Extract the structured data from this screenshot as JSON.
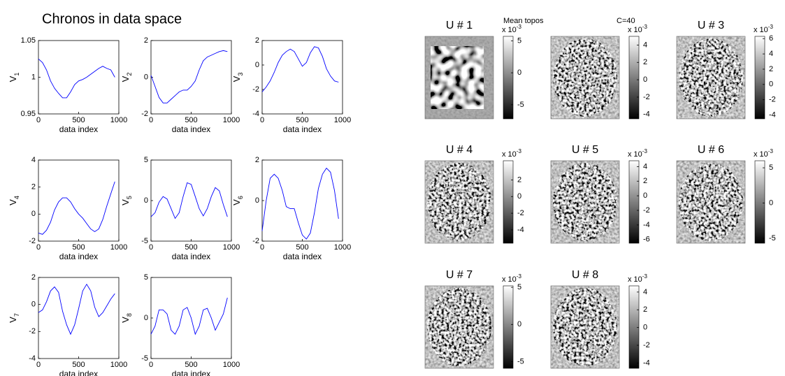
{
  "title": "Chronos in data space",
  "annotations": [
    "Mean topos",
    "C=40"
  ],
  "chart_data": [
    {
      "type": "line",
      "ylabel": "V",
      "ylabel_sub": "1",
      "xlabel": "data index",
      "color": "#0000ff",
      "x": [
        0,
        50,
        100,
        150,
        200,
        250,
        300,
        350,
        400,
        450,
        500,
        550,
        600,
        650,
        700,
        750,
        800,
        850,
        900,
        950
      ],
      "values": [
        1.025,
        1.02,
        1.01,
        0.995,
        0.985,
        0.978,
        0.972,
        0.972,
        0.98,
        0.99,
        0.995,
        0.997,
        1.0,
        1.004,
        1.008,
        1.012,
        1.015,
        1.012,
        1.01,
        1.0
      ],
      "xlim": [
        0,
        1000
      ],
      "ylim": [
        0.95,
        1.05
      ],
      "xticks": [
        0,
        500,
        1000
      ],
      "yticks": [
        0.95,
        1,
        1.05
      ]
    },
    {
      "type": "line",
      "ylabel": "V",
      "ylabel_sub": "2",
      "xlabel": "data index",
      "color": "#0000ff",
      "x": [
        0,
        50,
        100,
        150,
        200,
        250,
        300,
        350,
        400,
        450,
        500,
        550,
        600,
        650,
        700,
        750,
        800,
        850,
        900,
        950
      ],
      "values": [
        0.1,
        -0.5,
        -1.1,
        -1.4,
        -1.4,
        -1.2,
        -1.0,
        -0.8,
        -0.7,
        -0.7,
        -0.5,
        -0.2,
        0.4,
        0.9,
        1.1,
        1.2,
        1.3,
        1.4,
        1.45,
        1.4
      ],
      "xlim": [
        0,
        1000
      ],
      "ylim": [
        -2,
        2
      ],
      "xticks": [
        0,
        500,
        1000
      ],
      "yticks": [
        -2,
        0,
        2
      ]
    },
    {
      "type": "line",
      "ylabel": "V",
      "ylabel_sub": "3",
      "xlabel": "data index",
      "color": "#0000ff",
      "x": [
        0,
        50,
        100,
        150,
        200,
        250,
        300,
        350,
        400,
        450,
        500,
        550,
        600,
        650,
        700,
        750,
        800,
        850,
        900,
        950
      ],
      "values": [
        -2.2,
        -1.8,
        -1.3,
        -0.6,
        0.2,
        0.8,
        1.1,
        1.3,
        1.1,
        0.5,
        -0.1,
        0.2,
        1.0,
        1.5,
        1.4,
        0.7,
        -0.3,
        -0.9,
        -1.3,
        -1.4
      ],
      "xlim": [
        0,
        1000
      ],
      "ylim": [
        -4,
        2
      ],
      "xticks": [
        0,
        500,
        1000
      ],
      "yticks": [
        -4,
        -2,
        0,
        2
      ]
    },
    {
      "type": "line",
      "ylabel": "V",
      "ylabel_sub": "4",
      "xlabel": "data index",
      "color": "#0000ff",
      "x": [
        0,
        50,
        100,
        150,
        200,
        250,
        300,
        350,
        400,
        450,
        500,
        550,
        600,
        650,
        700,
        750,
        800,
        850,
        900,
        950
      ],
      "values": [
        -1.4,
        -1.5,
        -1.2,
        -0.6,
        0.3,
        0.9,
        1.2,
        1.2,
        0.9,
        0.4,
        0,
        -0.3,
        -0.7,
        -1.1,
        -1.3,
        -1.1,
        -0.4,
        0.6,
        1.5,
        2.4
      ],
      "xlim": [
        0,
        1000
      ],
      "ylim": [
        -2,
        4
      ],
      "xticks": [
        0,
        500,
        1000
      ],
      "yticks": [
        -2,
        0,
        2,
        4
      ]
    },
    {
      "type": "line",
      "ylabel": "V",
      "ylabel_sub": "5",
      "xlabel": "data index",
      "color": "#0000ff",
      "x": [
        0,
        50,
        100,
        150,
        200,
        250,
        300,
        350,
        400,
        450,
        500,
        550,
        600,
        650,
        700,
        750,
        800,
        850,
        900,
        950
      ],
      "values": [
        -2,
        -1.5,
        -0.2,
        0.5,
        0.2,
        -1,
        -2.2,
        -1.5,
        0.5,
        2.2,
        2,
        0.5,
        -1,
        -1.9,
        -1,
        0.5,
        1.6,
        1.2,
        -0.5,
        -2
      ],
      "xlim": [
        0,
        1000
      ],
      "ylim": [
        -5,
        5
      ],
      "xticks": [
        0,
        500,
        1000
      ],
      "yticks": [
        -5,
        0,
        5
      ]
    },
    {
      "type": "line",
      "ylabel": "V",
      "ylabel_sub": "6",
      "xlabel": "data index",
      "color": "#0000ff",
      "x": [
        0,
        50,
        100,
        150,
        200,
        250,
        300,
        350,
        400,
        450,
        500,
        550,
        600,
        650,
        700,
        750,
        800,
        850,
        900,
        950
      ],
      "values": [
        -1.5,
        0,
        1.1,
        1.3,
        1.1,
        0.5,
        -0.3,
        -0.4,
        -0.4,
        -1.1,
        -1.7,
        -1.9,
        -1.6,
        -0.6,
        0.6,
        1.3,
        1.6,
        1.4,
        0.5,
        -0.9
      ],
      "xlim": [
        0,
        1000
      ],
      "ylim": [
        -2,
        2
      ],
      "xticks": [
        0,
        500,
        1000
      ],
      "yticks": [
        -2,
        0,
        2
      ]
    },
    {
      "type": "line",
      "ylabel": "V",
      "ylabel_sub": "7",
      "xlabel": "data index",
      "color": "#0000ff",
      "x": [
        0,
        50,
        100,
        150,
        200,
        250,
        300,
        350,
        400,
        450,
        500,
        550,
        600,
        650,
        700,
        750,
        800,
        850,
        900,
        950
      ],
      "values": [
        -0.6,
        -0.4,
        0.2,
        1,
        1.3,
        0.9,
        -0.5,
        -1.5,
        -2.2,
        -1.5,
        -0.3,
        1,
        1.5,
        1,
        -0.2,
        -0.9,
        -0.6,
        -0.1,
        0.4,
        0.8
      ],
      "xlim": [
        0,
        1000
      ],
      "ylim": [
        -4,
        2
      ],
      "xticks": [
        0,
        500,
        1000
      ],
      "yticks": [
        -4,
        -2,
        0,
        2
      ]
    },
    {
      "type": "line",
      "ylabel": "V",
      "ylabel_sub": "8",
      "xlabel": "data index",
      "color": "#0000ff",
      "x": [
        0,
        50,
        100,
        150,
        200,
        250,
        300,
        350,
        400,
        450,
        500,
        550,
        600,
        650,
        700,
        750,
        800,
        850,
        900,
        950
      ],
      "values": [
        -2,
        -1,
        1,
        1,
        0.5,
        -1.5,
        -2,
        -1,
        1,
        1.3,
        0,
        -2,
        -1,
        1,
        1.2,
        0,
        -1.5,
        -0.5,
        0.5,
        2.5
      ],
      "xlim": [
        0,
        1000
      ],
      "ylim": [
        -5,
        5
      ],
      "xticks": [
        0,
        500,
        1000
      ],
      "yticks": [
        -5,
        0,
        5
      ]
    },
    {
      "type": "image",
      "title": "U # 1",
      "style": "smooth",
      "exponent_label": "x 10",
      "exponent": "-3",
      "clim": [
        -7.2,
        5.7
      ],
      "cticks": [
        -5,
        0,
        5
      ]
    },
    {
      "type": "image",
      "style": "fine",
      "exponent_label": "x 10",
      "exponent": "-3",
      "clim": [
        -4.5,
        5
      ],
      "cticks": [
        -4,
        -2,
        0,
        2,
        4
      ]
    },
    {
      "type": "image",
      "title": "U # 3",
      "style": "fine",
      "exponent_label": "x 10",
      "exponent": "-3",
      "clim": [
        -4.5,
        6.3
      ],
      "cticks": [
        -4,
        -2,
        0,
        2,
        4,
        6
      ]
    },
    {
      "type": "image",
      "title": "U # 4",
      "style": "fine",
      "exponent_label": "x 10",
      "exponent": "-3",
      "clim": [
        -5.6,
        4.3
      ],
      "cticks": [
        -4,
        -2,
        0,
        2
      ]
    },
    {
      "type": "image",
      "title": "U # 5",
      "style": "fine",
      "exponent_label": "x 10",
      "exponent": "-3",
      "clim": [
        -6.5,
        4.8
      ],
      "cticks": [
        -6,
        -4,
        -2,
        0,
        2,
        4
      ]
    },
    {
      "type": "image",
      "title": "U # 6",
      "style": "fine",
      "exponent_label": "x 10",
      "exponent": "-3",
      "clim": [
        -5.7,
        6
      ],
      "cticks": [
        -5,
        0,
        5
      ]
    },
    {
      "type": "image",
      "title": "U # 7",
      "style": "fine",
      "exponent_label": "x 10",
      "exponent": "-3",
      "clim": [
        -5.9,
        5.2
      ],
      "cticks": [
        -5,
        0,
        5
      ]
    },
    {
      "type": "image",
      "title": "U # 8",
      "style": "fine",
      "exponent_label": "x 10",
      "exponent": "-3",
      "clim": [
        -4.6,
        4.7
      ],
      "cticks": [
        -4,
        -2,
        0,
        2,
        4
      ]
    }
  ]
}
